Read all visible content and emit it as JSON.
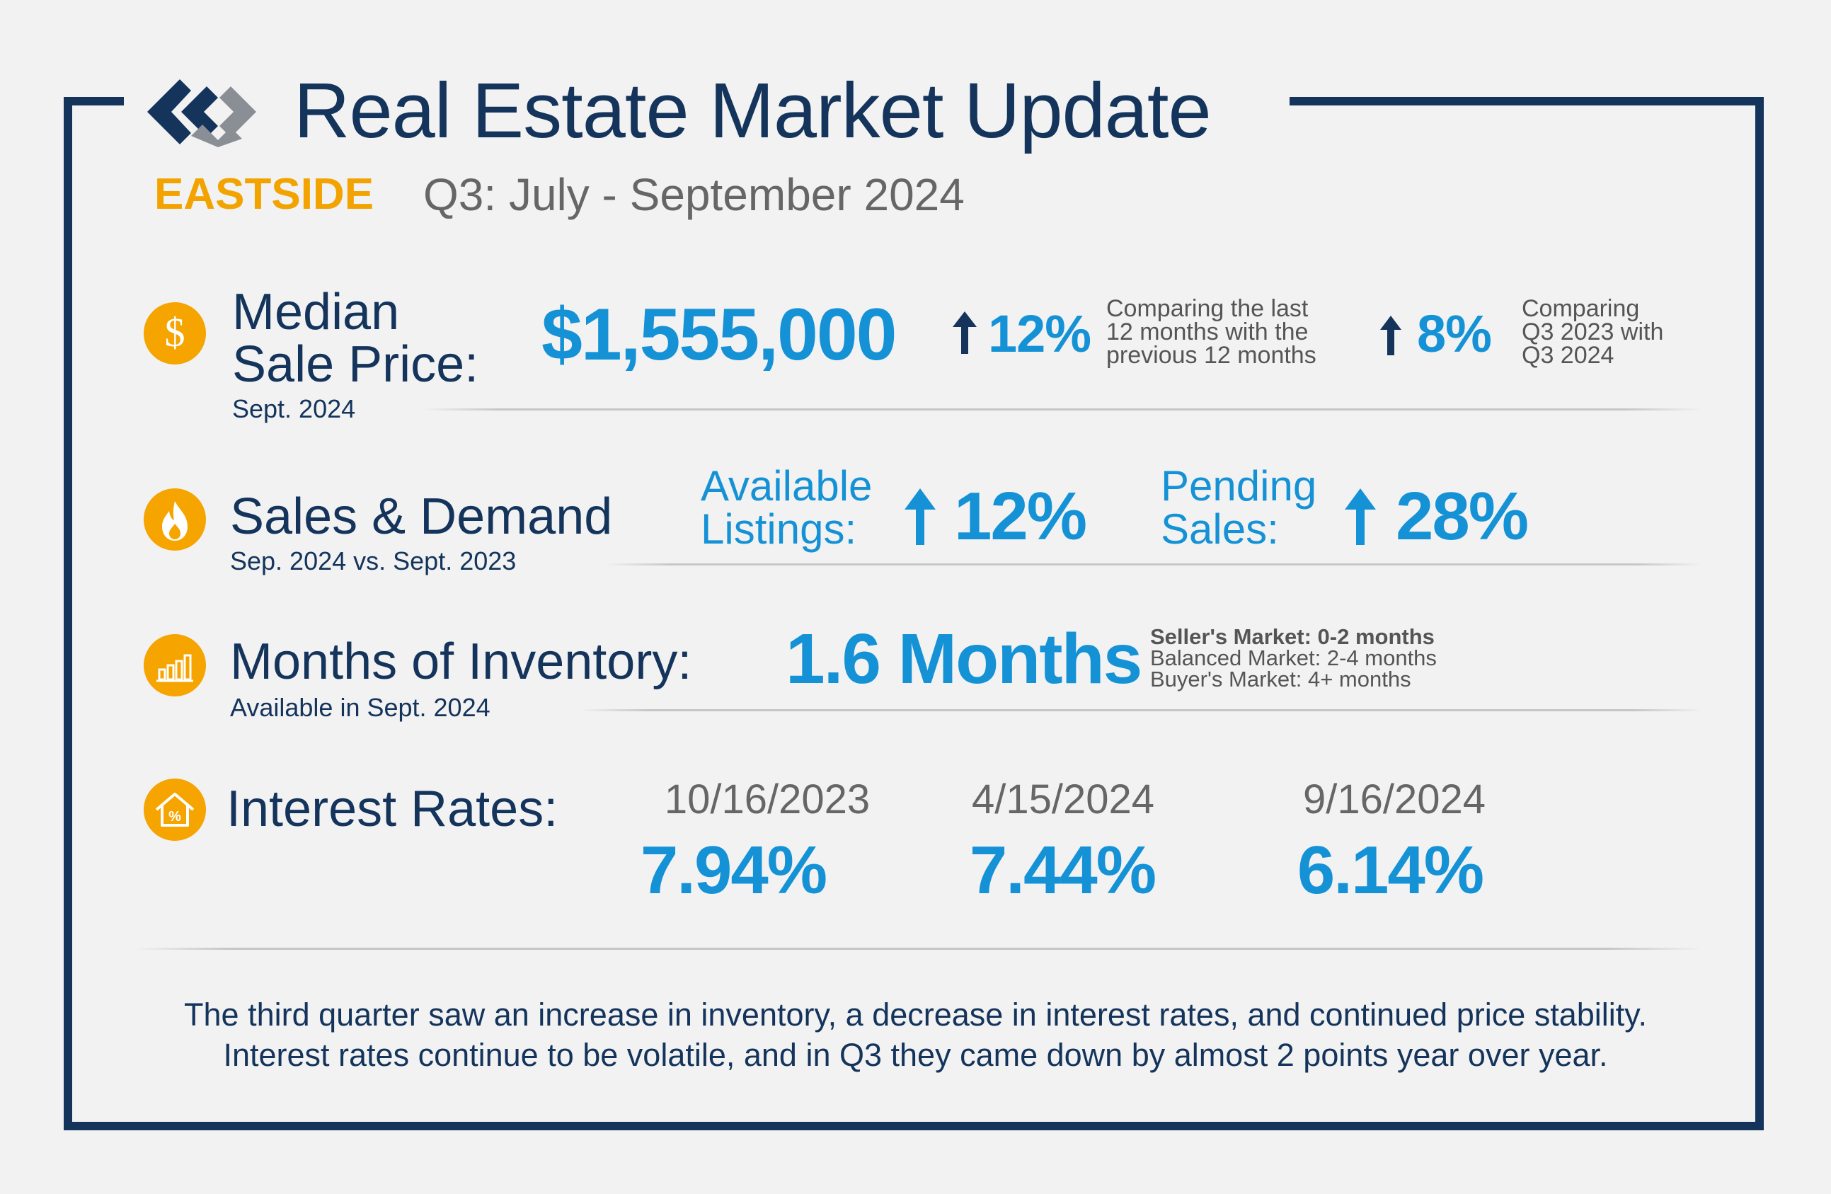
{
  "header": {
    "title": "Real Estate Market Update",
    "region": "EASTSIDE",
    "period": "Q3: July - September 2024"
  },
  "median_price": {
    "label_line1": "Median",
    "label_line2": "Sale Price:",
    "sub": "Sept. 2024",
    "value": "$1,555,000",
    "change1": {
      "value": "12%",
      "direction": "up",
      "note": [
        "Comparing the last",
        "12 months with the",
        "previous 12 months"
      ]
    },
    "change2": {
      "value": "8%",
      "direction": "up",
      "note": [
        "Comparing",
        "Q3 2023 with",
        "Q3 2024"
      ]
    }
  },
  "sales_demand": {
    "label": "Sales & Demand",
    "sub": "Sep. 2024 vs. Sept. 2023",
    "available": {
      "label_line1": "Available",
      "label_line2": "Listings:",
      "value": "12%",
      "direction": "up"
    },
    "pending": {
      "label_line1": "Pending",
      "label_line2": "Sales:",
      "value": "28%",
      "direction": "up"
    }
  },
  "inventory": {
    "label": "Months of Inventory:",
    "sub": "Available in Sept. 2024",
    "value": "1.6 Months",
    "legend": [
      "Seller's Market: 0-2 months",
      "Balanced Market: 2-4 months",
      "Buyer's Market: 4+ months"
    ]
  },
  "interest_rates": {
    "label": "Interest Rates:",
    "rates": [
      {
        "date": "10/16/2023",
        "value": "7.94%"
      },
      {
        "date": "4/15/2024",
        "value": "7.44%"
      },
      {
        "date": "9/16/2024",
        "value": "6.14%"
      }
    ]
  },
  "footer": {
    "line1": "The third quarter saw an increase in inventory, a decrease in interest rates, and continued price stability.",
    "line2": "Interest rates continue to be volatile, and in Q3 they came down by almost 2 points year over year."
  },
  "colors": {
    "navy": "#14345c",
    "blue": "#1592d6",
    "orange": "#f3a300",
    "gray": "#666666"
  },
  "icons": [
    "logo-mark",
    "dollar-icon",
    "flame-icon",
    "bar-chart-icon",
    "house-percent-icon",
    "arrow-up-icon"
  ]
}
